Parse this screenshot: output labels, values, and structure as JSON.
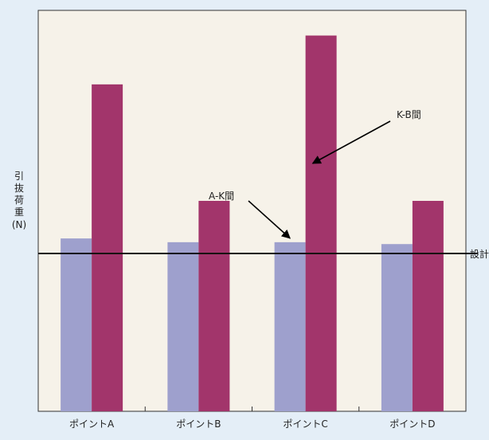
{
  "colors": {
    "background": "#e4eef7",
    "plot_background": "#f6f2e9",
    "series_ak": "#9ea0cd",
    "series_kb": "#a2356b",
    "design_line": "#111111"
  },
  "chart_data": {
    "type": "bar",
    "categories": [
      "ポイントA",
      "ポイントB",
      "ポイントC",
      "ポイントD"
    ],
    "series": [
      {
        "name": "A-K間",
        "values": [
          46,
          45,
          45,
          44.5
        ]
      },
      {
        "name": "K-B間",
        "values": [
          87,
          56,
          100,
          56
        ]
      }
    ],
    "ylim": [
      0,
      105
    ],
    "ylabel_chars": [
      "引",
      "抜",
      "荷",
      "重"
    ],
    "ylabel_unit": "(N)",
    "reference_line": {
      "value": 42,
      "label": "設計"
    },
    "annotations": [
      {
        "text": "A-K間",
        "series": "A-K間",
        "category": "ポイントC"
      },
      {
        "text": "K-B間",
        "series": "K-B間",
        "category": "ポイントC"
      }
    ],
    "grid": false,
    "legend": "none"
  }
}
